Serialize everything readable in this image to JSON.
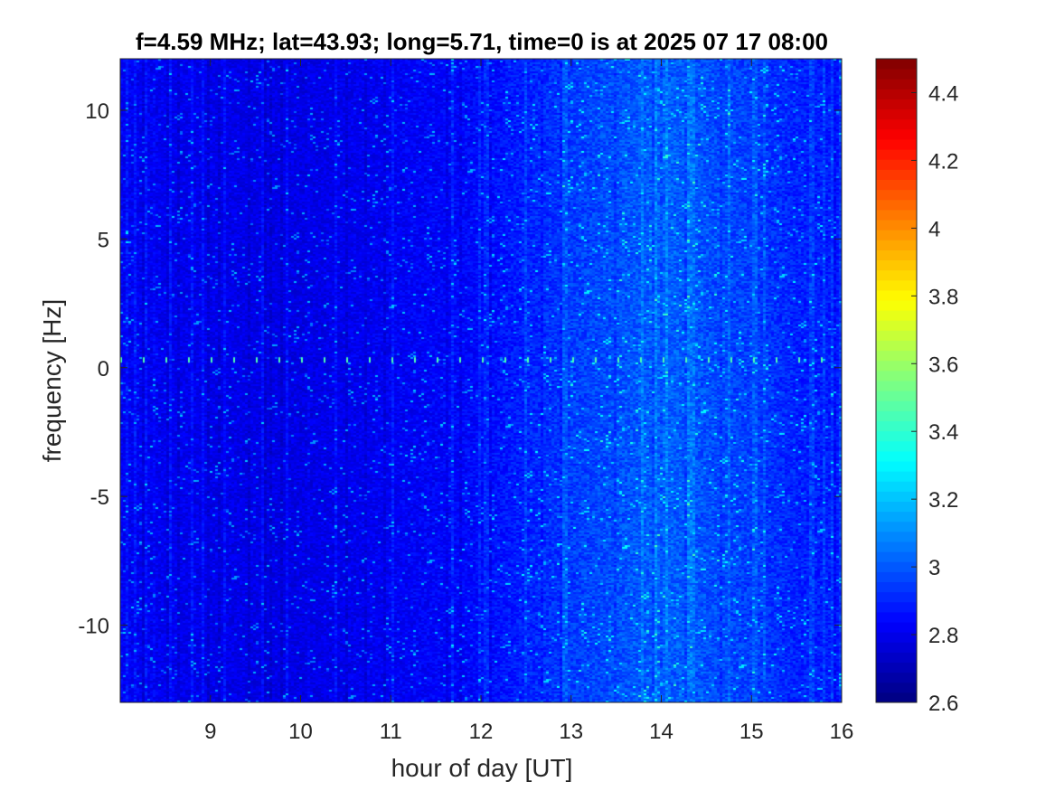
{
  "chart_data": {
    "type": "heatmap",
    "title": "f=4.59 MHz;  lat=43.93; long=5.71, time=0 is at 2025 07 17 08:00",
    "xlabel": "hour of day [UT]",
    "ylabel": "frequency [Hz]",
    "xlim": [
      8,
      16
    ],
    "ylim": [
      -13,
      12
    ],
    "x_ticks": [
      9,
      10,
      11,
      12,
      13,
      14,
      15,
      16
    ],
    "x_tick_labels": [
      "9",
      "10",
      "11",
      "12",
      "13",
      "14",
      "15",
      "16"
    ],
    "y_ticks": [
      10,
      5,
      0,
      -5,
      -10
    ],
    "y_tick_labels": [
      "10",
      "5",
      "0",
      "-5",
      "-10"
    ],
    "colorbar": {
      "colormap": "jet",
      "clim": [
        2.6,
        4.5
      ],
      "ticks": [
        4.4,
        4.2,
        4,
        3.8,
        3.6,
        3.4,
        3.2,
        3,
        2.8,
        2.6
      ],
      "tick_labels": [
        "4.4",
        "4.2",
        "4",
        "3.8",
        "3.6",
        "3.4",
        "3.2",
        "3",
        "2.8",
        "2.6"
      ]
    },
    "background_level": 2.8,
    "intensity_profile": {
      "hours": [
        8,
        9,
        10,
        11,
        12,
        13,
        14,
        15,
        15.5,
        16
      ],
      "levels": [
        2.82,
        2.8,
        2.79,
        2.82,
        2.85,
        2.95,
        3.02,
        2.95,
        2.9,
        2.88
      ]
    },
    "carrier_line_frequency": 0.3,
    "grid": false
  }
}
